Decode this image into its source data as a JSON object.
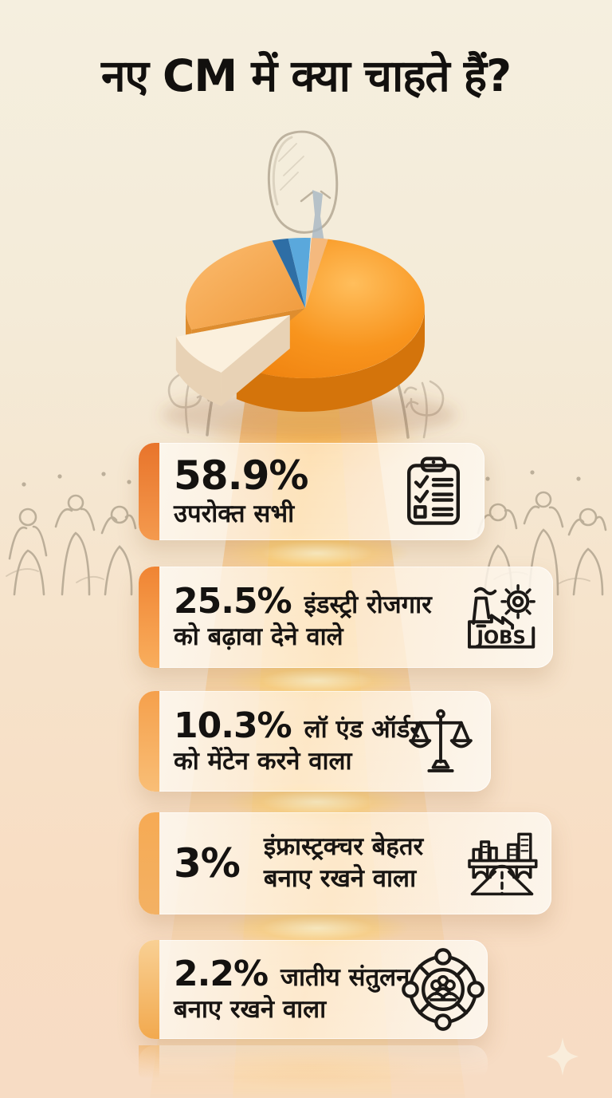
{
  "title": "नए CM में क्या चाहते हैं?",
  "chart_data": {
    "type": "pie",
    "style": "3d-exploded",
    "title": "नए CM में क्या चाहते हैं?",
    "labels": [
      "उपरोक्त सभी",
      "इंडस्ट्री रोजगार को बढ़ावा देने वाले",
      "लॉ एंड ऑर्डर को मेंटेन करने वाला",
      "इंफ्रास्ट्रक्चर बेहतर बनाए रखने वाला",
      "जातीय संतुलन बनाए रखने वाला"
    ],
    "values": [
      58.9,
      25.5,
      10.3,
      3,
      2.2
    ],
    "colors": [
      "#F8941D",
      "#F8A94C",
      "#FBF0DD",
      "#5AA8DC",
      "#2E6EA5"
    ],
    "exploded_label": "लॉ एंड ऑर्डर को मेंटेन करने वाला",
    "legend": "none"
  },
  "cards": [
    {
      "percent": "58.9%",
      "line1": "उपरोक्त सभी",
      "line2": "",
      "icon": "clipboard-checklist-icon"
    },
    {
      "percent": "25.5%",
      "line1": "इंडस्ट्री रोजगार",
      "line2": "को बढ़ावा देने वाले",
      "icon": "factory-jobs-icon",
      "icon_text": "JOBS"
    },
    {
      "percent": "10.3%",
      "line1": "लॉ एंड ऑर्डर",
      "line2": "को मेंटेन करने वाला",
      "icon": "justice-scale-icon"
    },
    {
      "percent": "3%",
      "line1": "इंफ्रास्ट्रक्चर बेहतर",
      "line2": "बनाए रखने वाला",
      "icon": "infrastructure-icon"
    },
    {
      "percent": "2.2%",
      "line1": "जातीय संतुलन",
      "line2": "बनाए रखने वाला",
      "icon": "community-icon"
    }
  ],
  "design": {
    "background_top": "#F5EFDF",
    "background_bottom": "#F8DDC3",
    "beam_gold": "#FFC569",
    "accent_orange": "#F28A2E",
    "text_color": "#141210",
    "card_background": "#FDF8F1",
    "side_colors": [
      "#D4740B",
      "#DE8D2F",
      "#E8D2B5",
      "#3D87BC",
      "#255880"
    ],
    "filler_color": "#F4B97E",
    "filler_side": "#E09A55",
    "sketch_color": "#A89B87",
    "tie_color": "#94AABE"
  }
}
